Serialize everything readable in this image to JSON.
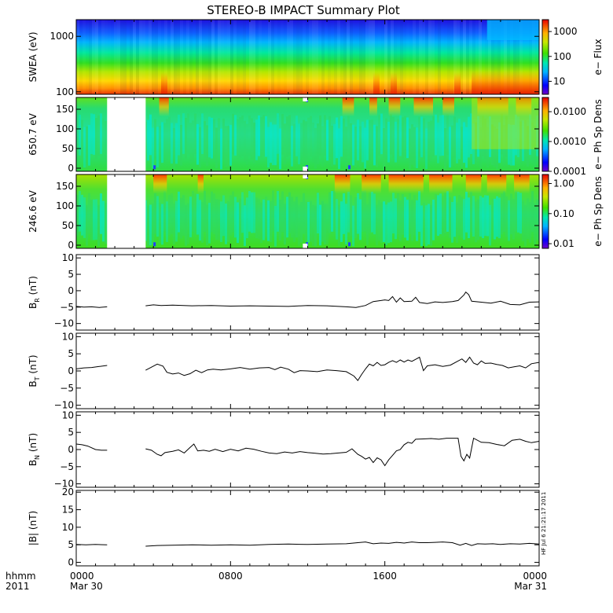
{
  "title": "STEREO-B IMPACT Summary Plot",
  "xaxis": {
    "corner_labels": [
      "hhmm",
      "2011"
    ],
    "ticks": [
      {
        "hours": 0,
        "label": "0000",
        "sublabel": "Mar 30"
      },
      {
        "hours": 8,
        "label": "0800",
        "sublabel": ""
      },
      {
        "hours": 16,
        "label": "1600",
        "sublabel": ""
      },
      {
        "hours": 24,
        "label": "0000",
        "sublabel": "Mar 31"
      }
    ],
    "range_hours": [
      0,
      24
    ]
  },
  "side_stamp": "HF Jul  6 21:21:17 2011",
  "colors": {
    "line": "#000000",
    "frame": "#000000",
    "background": "#ffffff"
  },
  "chart_data": [
    {
      "type": "heatmap",
      "ylabel": "SWEA (eV)",
      "ylog": true,
      "ylim": [
        90,
        2000
      ],
      "yticks": [
        {
          "v": 100,
          "label": "100"
        },
        {
          "v": 1000,
          "label": "1000"
        }
      ],
      "colorbar": {
        "label": "e− Flux",
        "log": true,
        "range": [
          3,
          3000
        ],
        "ticks": [
          {
            "v": 10,
            "label": "10"
          },
          {
            "v": 100,
            "label": "100"
          },
          {
            "v": 1000,
            "label": "1000"
          }
        ]
      },
      "data_gaps_hours": []
    },
    {
      "type": "heatmap",
      "ylabel": "650.7 eV",
      "ylog": false,
      "ylim": [
        -8,
        180
      ],
      "yticks": [
        {
          "v": 0,
          "label": "0"
        },
        {
          "v": 50,
          "label": "50"
        },
        {
          "v": 100,
          "label": "100"
        },
        {
          "v": 150,
          "label": "150"
        }
      ],
      "colorbar": {
        "label": "e− Ph Sp Dens",
        "log": true,
        "range": [
          0.0001,
          0.03
        ],
        "ticks": [
          {
            "v": 0.0001,
            "label": "0.0001"
          },
          {
            "v": 0.001,
            "label": "0.0010"
          },
          {
            "v": 0.01,
            "label": "0.0100"
          }
        ]
      },
      "data_gaps_hours": [
        [
          1.6,
          3.6
        ]
      ]
    },
    {
      "type": "heatmap",
      "ylabel": "246.6 eV",
      "ylog": false,
      "ylim": [
        -8,
        180
      ],
      "yticks": [
        {
          "v": 0,
          "label": "0"
        },
        {
          "v": 50,
          "label": "50"
        },
        {
          "v": 100,
          "label": "100"
        },
        {
          "v": 150,
          "label": "150"
        }
      ],
      "colorbar": {
        "label": "e− Ph Sp Dens",
        "log": true,
        "range": [
          0.007,
          2
        ],
        "ticks": [
          {
            "v": 0.01,
            "label": "0.01"
          },
          {
            "v": 0.1,
            "label": "0.10"
          },
          {
            "v": 1,
            "label": "1.00"
          }
        ]
      },
      "data_gaps_hours": [
        [
          1.6,
          3.6
        ]
      ]
    },
    {
      "type": "line",
      "ylabel": "B_R (nT)",
      "ylabel_main": "B",
      "ylabel_sub": "R",
      "ylabel_unit": " (nT)",
      "ylim": [
        -12,
        11
      ],
      "yticks": [
        {
          "v": -10,
          "label": "−10"
        },
        {
          "v": -5,
          "label": "−5"
        },
        {
          "v": 0,
          "label": "0"
        },
        {
          "v": 5,
          "label": "5"
        },
        {
          "v": 10,
          "label": "10"
        }
      ],
      "segments": [
        [
          [
            0,
            -4.8
          ],
          [
            0.4,
            -5.0
          ],
          [
            0.8,
            -4.9
          ],
          [
            1.2,
            -5.1
          ],
          [
            1.6,
            -4.9
          ]
        ],
        [
          [
            3.6,
            -4.6
          ],
          [
            4.0,
            -4.3
          ],
          [
            4.4,
            -4.5
          ],
          [
            5.0,
            -4.4
          ],
          [
            6.0,
            -4.6
          ],
          [
            7.0,
            -4.5
          ],
          [
            8.0,
            -4.7
          ],
          [
            9.0,
            -4.6
          ],
          [
            10.0,
            -4.7
          ],
          [
            11.0,
            -4.8
          ],
          [
            12.0,
            -4.5
          ],
          [
            13.0,
            -4.6
          ],
          [
            14.0,
            -4.9
          ],
          [
            14.5,
            -5.1
          ],
          [
            15.0,
            -4.5
          ],
          [
            15.4,
            -3.3
          ],
          [
            15.8,
            -3.0
          ],
          [
            16.0,
            -2.8
          ],
          [
            16.2,
            -3.0
          ],
          [
            16.4,
            -1.8
          ],
          [
            16.6,
            -3.5
          ],
          [
            16.8,
            -2.2
          ],
          [
            17.0,
            -3.3
          ],
          [
            17.4,
            -3.2
          ],
          [
            17.6,
            -2.0
          ],
          [
            17.8,
            -3.6
          ],
          [
            18.2,
            -3.9
          ],
          [
            18.6,
            -3.4
          ],
          [
            19.0,
            -3.6
          ],
          [
            19.5,
            -3.3
          ],
          [
            19.8,
            -3.0
          ],
          [
            20.1,
            -1.3
          ],
          [
            20.2,
            -0.4
          ],
          [
            20.35,
            -1.2
          ],
          [
            20.5,
            -3.2
          ],
          [
            21.0,
            -3.5
          ],
          [
            21.5,
            -3.8
          ],
          [
            22.0,
            -3.2
          ],
          [
            22.5,
            -4.2
          ],
          [
            23.0,
            -4.3
          ],
          [
            23.5,
            -3.5
          ],
          [
            24.0,
            -3.4
          ]
        ]
      ]
    },
    {
      "type": "line",
      "ylabel": "B_T (nT)",
      "ylabel_main": "B",
      "ylabel_sub": "T",
      "ylabel_unit": " (nT)",
      "ylim": [
        -11,
        11
      ],
      "yticks": [
        {
          "v": -10,
          "label": "−10"
        },
        {
          "v": -5,
          "label": "−5"
        },
        {
          "v": 0,
          "label": "0"
        },
        {
          "v": 5,
          "label": "5"
        },
        {
          "v": 10,
          "label": "10"
        }
      ],
      "segments": [
        [
          [
            0,
            0.6
          ],
          [
            0.4,
            0.9
          ],
          [
            0.8,
            1.0
          ],
          [
            1.2,
            1.3
          ],
          [
            1.6,
            1.6
          ]
        ],
        [
          [
            3.6,
            0.2
          ],
          [
            3.9,
            1.1
          ],
          [
            4.2,
            2.0
          ],
          [
            4.5,
            1.4
          ],
          [
            4.7,
            -0.4
          ],
          [
            5.0,
            -0.9
          ],
          [
            5.3,
            -0.6
          ],
          [
            5.6,
            -1.3
          ],
          [
            5.9,
            -0.8
          ],
          [
            6.2,
            0.2
          ],
          [
            6.5,
            -0.5
          ],
          [
            6.8,
            0.3
          ],
          [
            7.1,
            0.5
          ],
          [
            7.5,
            0.3
          ],
          [
            8.0,
            0.6
          ],
          [
            8.5,
            1.0
          ],
          [
            9.0,
            0.5
          ],
          [
            9.5,
            0.9
          ],
          [
            10.0,
            1.0
          ],
          [
            10.3,
            0.4
          ],
          [
            10.6,
            1.1
          ],
          [
            11.0,
            0.5
          ],
          [
            11.3,
            -0.5
          ],
          [
            11.6,
            0.1
          ],
          [
            12.0,
            0.0
          ],
          [
            12.5,
            -0.2
          ],
          [
            13.0,
            0.3
          ],
          [
            13.5,
            0.1
          ],
          [
            14.0,
            -0.2
          ],
          [
            14.4,
            -1.5
          ],
          [
            14.6,
            -2.8
          ],
          [
            14.8,
            -1.0
          ],
          [
            15.0,
            0.6
          ],
          [
            15.2,
            2.0
          ],
          [
            15.4,
            1.5
          ],
          [
            15.6,
            2.5
          ],
          [
            15.8,
            1.6
          ],
          [
            16.0,
            1.8
          ],
          [
            16.2,
            2.5
          ],
          [
            16.4,
            3.0
          ],
          [
            16.6,
            2.5
          ],
          [
            16.8,
            3.2
          ],
          [
            17.0,
            2.6
          ],
          [
            17.2,
            3.2
          ],
          [
            17.4,
            2.8
          ],
          [
            17.6,
            3.4
          ],
          [
            17.8,
            4.0
          ],
          [
            18.0,
            0.1
          ],
          [
            18.2,
            1.5
          ],
          [
            18.6,
            1.8
          ],
          [
            19.0,
            1.3
          ],
          [
            19.4,
            1.7
          ],
          [
            19.8,
            2.9
          ],
          [
            20.0,
            3.5
          ],
          [
            20.2,
            2.5
          ],
          [
            20.4,
            4.0
          ],
          [
            20.6,
            2.3
          ],
          [
            20.8,
            1.8
          ],
          [
            21.0,
            2.9
          ],
          [
            21.2,
            2.2
          ],
          [
            21.5,
            2.3
          ],
          [
            21.8,
            1.9
          ],
          [
            22.1,
            1.6
          ],
          [
            22.4,
            0.9
          ],
          [
            22.7,
            1.2
          ],
          [
            23.0,
            1.5
          ],
          [
            23.3,
            0.9
          ],
          [
            23.6,
            2.1
          ],
          [
            24.0,
            2.5
          ]
        ]
      ]
    },
    {
      "type": "line",
      "ylabel": "B_N (nT)",
      "ylabel_main": "B",
      "ylabel_sub": "N",
      "ylabel_unit": " (nT)",
      "ylim": [
        -11,
        11
      ],
      "yticks": [
        {
          "v": -10,
          "label": "−10"
        },
        {
          "v": -5,
          "label": "−5"
        },
        {
          "v": 0,
          "label": "0"
        },
        {
          "v": 5,
          "label": "5"
        },
        {
          "v": 10,
          "label": "10"
        }
      ],
      "segments": [
        [
          [
            0,
            1.6
          ],
          [
            0.3,
            1.4
          ],
          [
            0.6,
            1.0
          ],
          [
            1.0,
            0.0
          ],
          [
            1.3,
            -0.2
          ],
          [
            1.6,
            -0.2
          ]
        ],
        [
          [
            3.6,
            0.2
          ],
          [
            3.9,
            -0.2
          ],
          [
            4.2,
            -1.4
          ],
          [
            4.4,
            -1.8
          ],
          [
            4.6,
            -0.9
          ],
          [
            5.0,
            -0.5
          ],
          [
            5.3,
            -0.1
          ],
          [
            5.6,
            -1.0
          ],
          [
            5.9,
            0.6
          ],
          [
            6.1,
            1.6
          ],
          [
            6.3,
            -0.4
          ],
          [
            6.6,
            -0.2
          ],
          [
            6.9,
            -0.5
          ],
          [
            7.2,
            0.1
          ],
          [
            7.6,
            -0.6
          ],
          [
            8.0,
            0.1
          ],
          [
            8.4,
            -0.4
          ],
          [
            8.8,
            0.4
          ],
          [
            9.2,
            0.1
          ],
          [
            9.6,
            -0.5
          ],
          [
            10.0,
            -1.0
          ],
          [
            10.4,
            -1.2
          ],
          [
            10.8,
            -0.7
          ],
          [
            11.2,
            -1.0
          ],
          [
            11.6,
            -0.6
          ],
          [
            12.0,
            -0.9
          ],
          [
            12.4,
            -1.1
          ],
          [
            12.8,
            -1.3
          ],
          [
            13.2,
            -1.2
          ],
          [
            13.6,
            -1.0
          ],
          [
            14.0,
            -0.8
          ],
          [
            14.3,
            0.2
          ],
          [
            14.6,
            -1.4
          ],
          [
            14.8,
            -2.0
          ],
          [
            15.0,
            -2.8
          ],
          [
            15.2,
            -2.3
          ],
          [
            15.4,
            -3.8
          ],
          [
            15.6,
            -2.4
          ],
          [
            15.8,
            -3.0
          ],
          [
            16.0,
            -4.7
          ],
          [
            16.2,
            -3.0
          ],
          [
            16.4,
            -1.7
          ],
          [
            16.6,
            -0.4
          ],
          [
            16.8,
            0.0
          ],
          [
            17.0,
            1.4
          ],
          [
            17.2,
            2.1
          ],
          [
            17.4,
            1.8
          ],
          [
            17.6,
            3.0
          ],
          [
            18.0,
            3.1
          ],
          [
            18.4,
            3.2
          ],
          [
            18.8,
            3.0
          ],
          [
            19.2,
            3.3
          ],
          [
            19.6,
            3.3
          ],
          [
            19.8,
            3.3
          ],
          [
            19.95,
            -2.0
          ],
          [
            20.1,
            -3.3
          ],
          [
            20.25,
            -1.4
          ],
          [
            20.4,
            -2.5
          ],
          [
            20.6,
            3.3
          ],
          [
            21.0,
            2.1
          ],
          [
            21.4,
            2.0
          ],
          [
            21.8,
            1.5
          ],
          [
            22.2,
            1.1
          ],
          [
            22.6,
            2.7
          ],
          [
            23.0,
            3.0
          ],
          [
            23.3,
            2.4
          ],
          [
            23.6,
            2.0
          ],
          [
            24.0,
            2.4
          ]
        ]
      ]
    },
    {
      "type": "line",
      "ylabel": "|B| (nT)",
      "ylabel_main": "|B|",
      "ylabel_sub": "",
      "ylabel_unit": " (nT)",
      "ylim": [
        -1,
        20.5
      ],
      "yticks": [
        {
          "v": 0,
          "label": "0"
        },
        {
          "v": 5,
          "label": "5"
        },
        {
          "v": 10,
          "label": "10"
        },
        {
          "v": 15,
          "label": "15"
        },
        {
          "v": 20,
          "label": "20"
        }
      ],
      "segments": [
        [
          [
            0,
            5.1
          ],
          [
            0.5,
            5.0
          ],
          [
            1.0,
            5.1
          ],
          [
            1.6,
            5.0
          ]
        ],
        [
          [
            3.6,
            4.6
          ],
          [
            4.2,
            4.8
          ],
          [
            5.0,
            4.9
          ],
          [
            6.0,
            5.0
          ],
          [
            7.0,
            4.9
          ],
          [
            8.0,
            5.0
          ],
          [
            9.0,
            4.9
          ],
          [
            10.0,
            5.1
          ],
          [
            11.0,
            5.2
          ],
          [
            12.0,
            5.1
          ],
          [
            13.0,
            5.2
          ],
          [
            14.0,
            5.3
          ],
          [
            14.6,
            5.6
          ],
          [
            15.0,
            5.8
          ],
          [
            15.4,
            5.3
          ],
          [
            15.8,
            5.5
          ],
          [
            16.2,
            5.4
          ],
          [
            16.6,
            5.7
          ],
          [
            17.0,
            5.5
          ],
          [
            17.4,
            5.8
          ],
          [
            17.8,
            5.6
          ],
          [
            18.2,
            5.6
          ],
          [
            18.6,
            5.7
          ],
          [
            19.0,
            5.8
          ],
          [
            19.5,
            5.6
          ],
          [
            19.9,
            4.9
          ],
          [
            20.2,
            5.4
          ],
          [
            20.5,
            4.8
          ],
          [
            20.8,
            5.3
          ],
          [
            21.2,
            5.2
          ],
          [
            21.6,
            5.3
          ],
          [
            22.0,
            5.1
          ],
          [
            22.5,
            5.3
          ],
          [
            23.0,
            5.2
          ],
          [
            23.5,
            5.4
          ],
          [
            24.0,
            5.2
          ]
        ]
      ]
    }
  ]
}
